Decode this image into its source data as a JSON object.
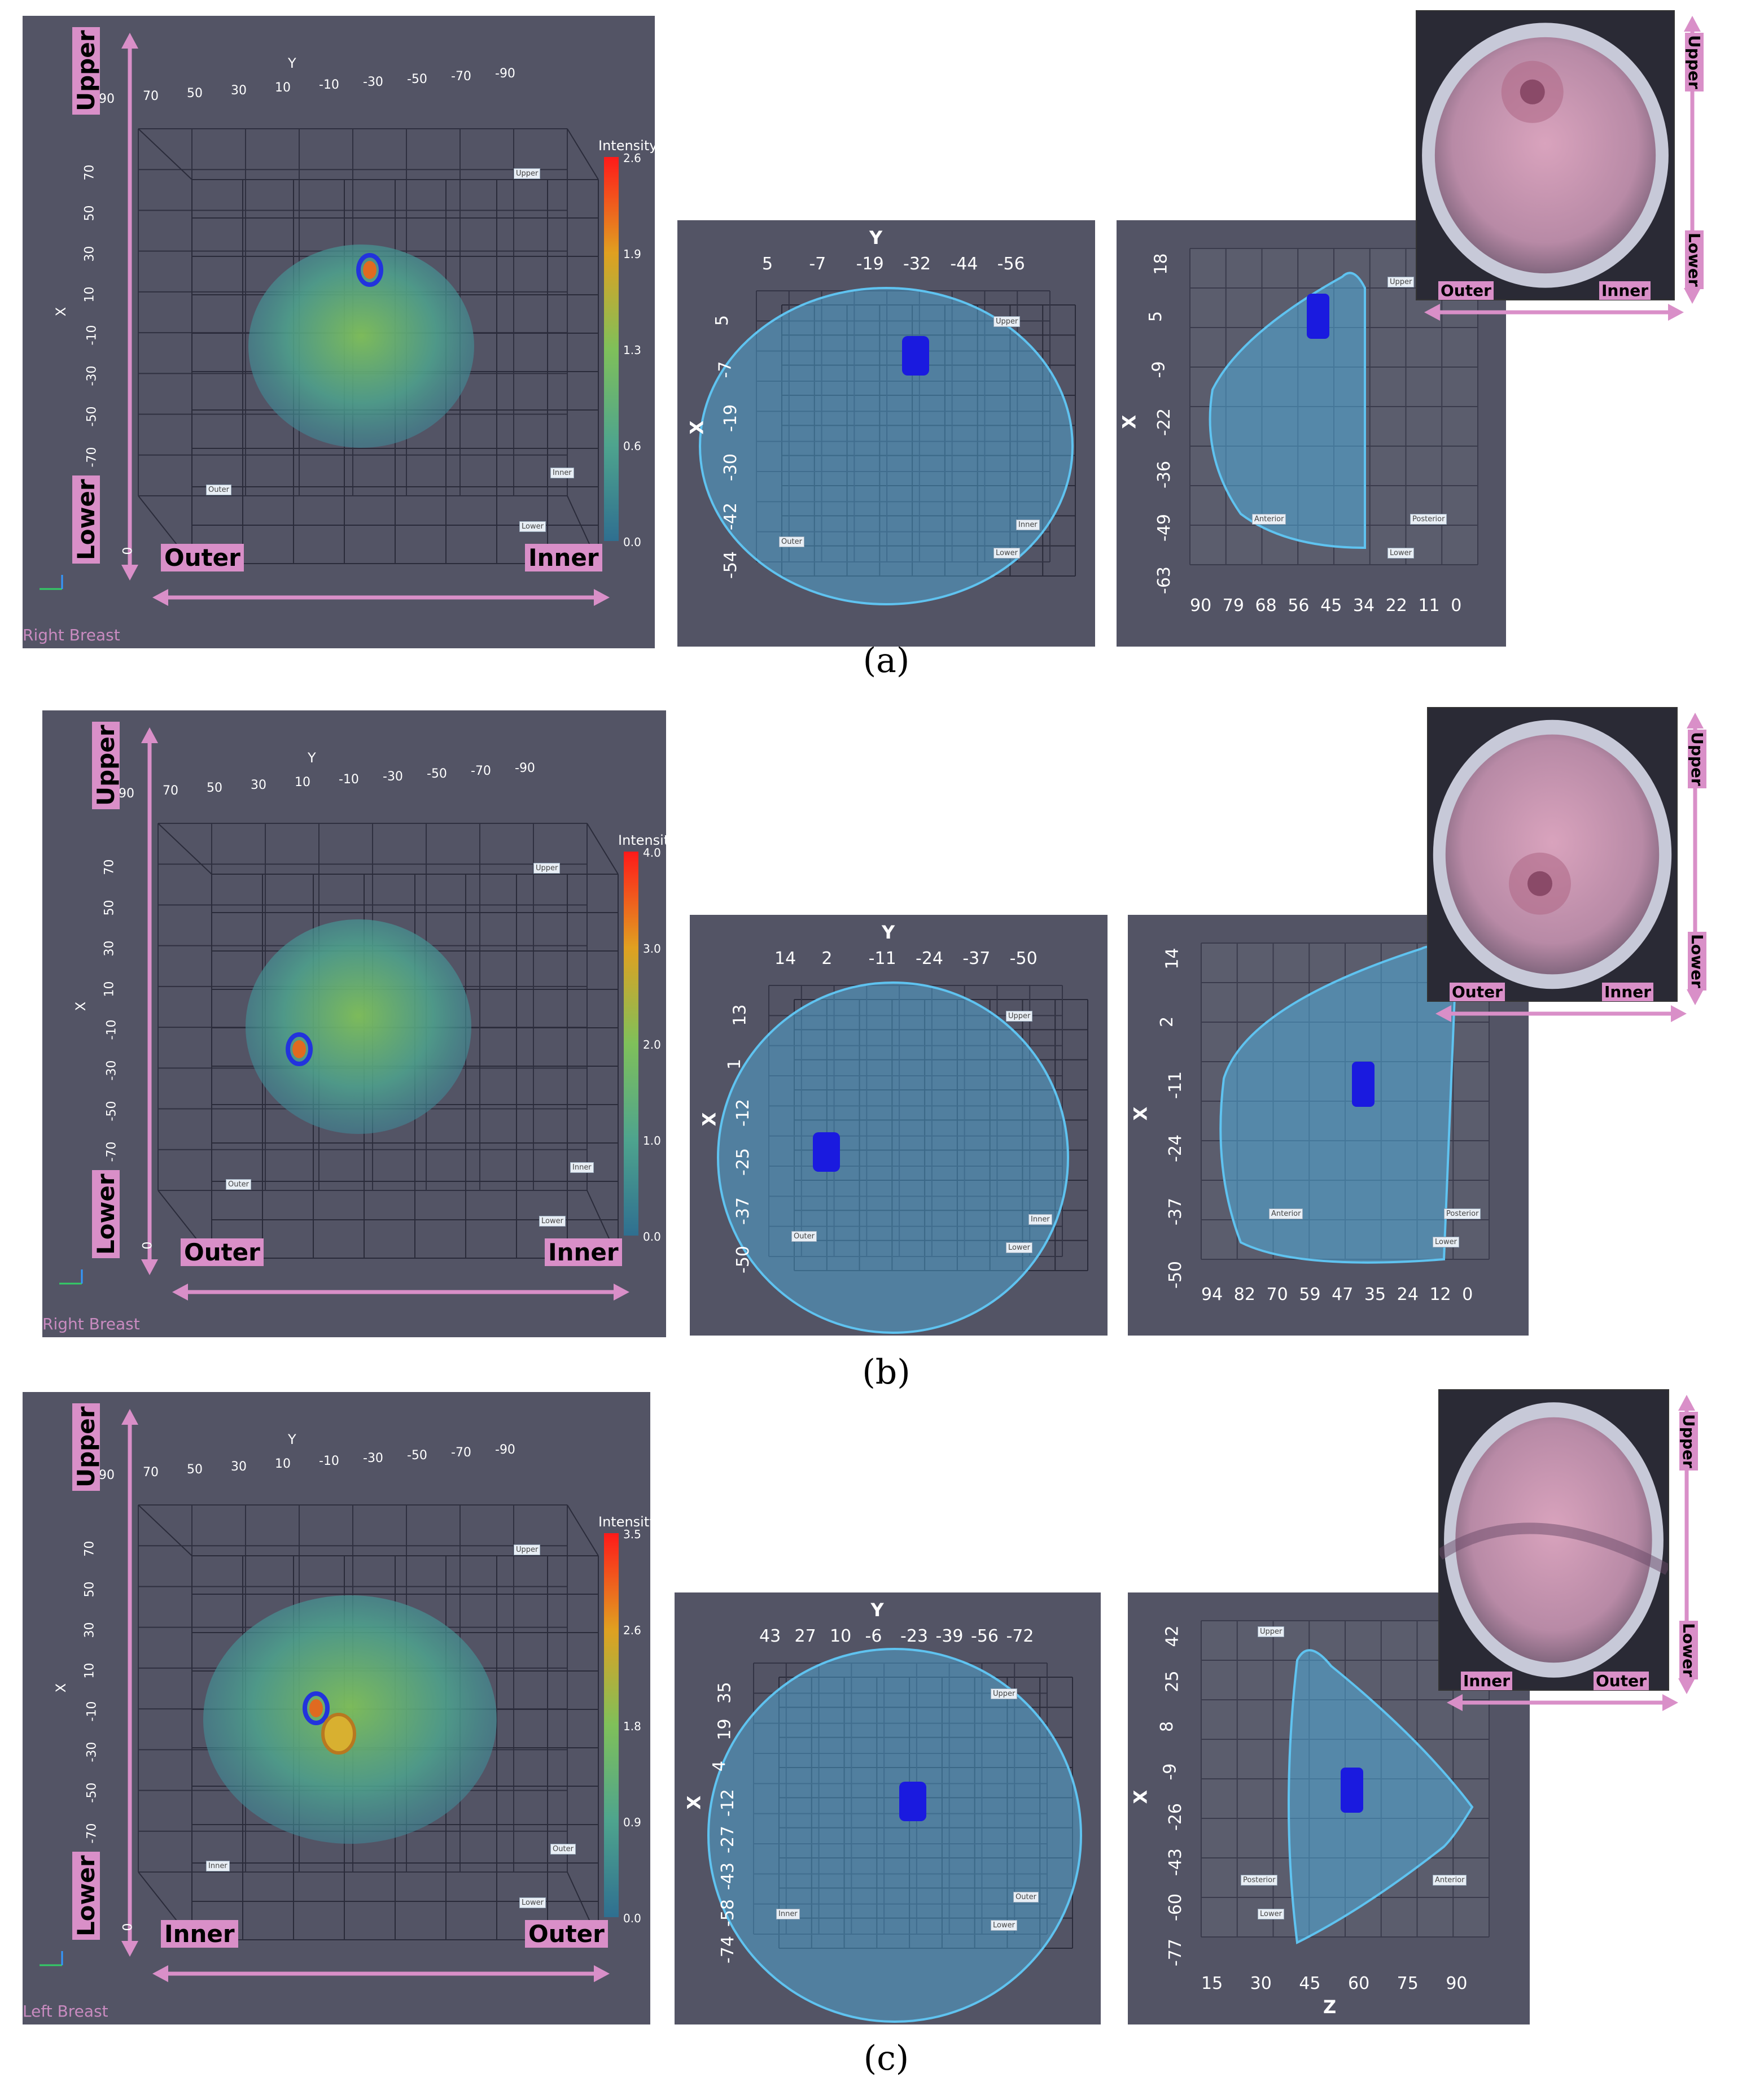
{
  "figure_labels": [
    "(a)",
    "(b)",
    "(c)"
  ],
  "rows": [
    {
      "id": "a",
      "main": {
        "y_axis_label": "Y",
        "x_axis_label": "X",
        "y_ticks": [
          "90",
          "70",
          "50",
          "30",
          "10",
          "-10",
          "-30",
          "-50",
          "-70",
          "-90"
        ],
        "x_ticks": [
          "70",
          "50",
          "30",
          "10",
          "-10",
          "-30",
          "-50",
          "-70"
        ],
        "x_zero": "0",
        "colorbar_title": "Intensity",
        "colorbar_ticks": [
          "2.6",
          "1.9",
          "1.3",
          "0.6",
          "0.0"
        ],
        "tags": [
          "Upper",
          "Outer",
          "Inner",
          "Lower"
        ],
        "dir_upper": "Upper",
        "dir_lower": "Lower",
        "dir_left": "Outer",
        "dir_right": "Inner",
        "side": "Right Breast"
      },
      "mid": {
        "y_axis_label": "Y",
        "x_axis_label": "X",
        "y_ticks": [
          "5",
          "-7",
          "-19",
          "-32",
          "-44",
          "-56"
        ],
        "x_ticks": [
          "5",
          "-7",
          "-19",
          "-30",
          "-42",
          "-54"
        ],
        "tags": [
          "Upper",
          "Outer",
          "Inner",
          "Lower"
        ]
      },
      "side_view": {
        "x_axis_label": "X",
        "x_ticks": [
          "18",
          "5",
          "-9",
          "-22",
          "-36",
          "-49",
          "-63"
        ],
        "z_ticks": [
          "90",
          "79",
          "68",
          "56",
          "45",
          "34",
          "22",
          "11",
          "0"
        ],
        "tags": [
          "Upper",
          "Anterior",
          "Posterior",
          "Lower"
        ]
      },
      "photo": {
        "dir_upper": "Upper",
        "dir_lower": "Lower",
        "dir_left": "Outer",
        "dir_right": "Inner"
      }
    },
    {
      "id": "b",
      "main": {
        "y_axis_label": "Y",
        "x_axis_label": "X",
        "y_ticks": [
          "90",
          "70",
          "50",
          "30",
          "10",
          "-10",
          "-30",
          "-50",
          "-70",
          "-90"
        ],
        "x_ticks": [
          "70",
          "50",
          "30",
          "10",
          "-10",
          "-30",
          "-50",
          "-70"
        ],
        "x_zero": "0",
        "colorbar_title": "Intensity",
        "colorbar_ticks": [
          "4.0",
          "3.0",
          "2.0",
          "1.0",
          "0.0"
        ],
        "tags": [
          "Upper",
          "Outer",
          "Inner",
          "Lower"
        ],
        "dir_upper": "Upper",
        "dir_lower": "Lower",
        "dir_left": "Outer",
        "dir_right": "Inner",
        "side": "Right Breast"
      },
      "mid": {
        "y_axis_label": "Y",
        "x_axis_label": "X",
        "y_ticks": [
          "14",
          "2",
          "-11",
          "-24",
          "-37",
          "-50"
        ],
        "x_ticks": [
          "13",
          "1",
          "-12",
          "-25",
          "-37",
          "-50"
        ],
        "tags": [
          "Upper",
          "Outer",
          "Inner",
          "Lower"
        ]
      },
      "side_view": {
        "x_axis_label": "X",
        "x_ticks": [
          "14",
          "2",
          "-11",
          "-24",
          "-37",
          "-50"
        ],
        "z_ticks": [
          "94",
          "82",
          "70",
          "59",
          "47",
          "35",
          "24",
          "12",
          "0"
        ],
        "tags": [
          "Anterior",
          "Posterior",
          "Lower"
        ]
      },
      "photo": {
        "dir_upper": "Upper",
        "dir_lower": "Lower",
        "dir_left": "Outer",
        "dir_right": "Inner"
      }
    },
    {
      "id": "c",
      "main": {
        "y_axis_label": "Y",
        "x_axis_label": "X",
        "y_ticks": [
          "90",
          "70",
          "50",
          "30",
          "10",
          "-10",
          "-30",
          "-50",
          "-70",
          "-90"
        ],
        "x_ticks": [
          "70",
          "50",
          "30",
          "10",
          "-10",
          "-30",
          "-50",
          "-70"
        ],
        "x_zero": "0",
        "colorbar_title": "Intensity",
        "colorbar_ticks": [
          "3.5",
          "2.6",
          "1.8",
          "0.9",
          "0.0"
        ],
        "tags": [
          "Upper",
          "Inner",
          "Outer",
          "Lower"
        ],
        "dir_upper": "Upper",
        "dir_lower": "Lower",
        "dir_left": "Inner",
        "dir_right": "Outer",
        "side": "Left Breast"
      },
      "mid": {
        "y_axis_label": "Y",
        "x_axis_label": "X",
        "y_ticks": [
          "43",
          "27",
          "10",
          "-6",
          "-23",
          "-39",
          "-56",
          "-72"
        ],
        "x_ticks": [
          "35",
          "19",
          "4",
          "-12",
          "-27",
          "-43",
          "-58",
          "-74"
        ],
        "tags": [
          "Upper",
          "Inner",
          "Outer",
          "Lower"
        ]
      },
      "side_view": {
        "x_axis_label": "X",
        "z_axis_label": "Z",
        "x_ticks": [
          "42",
          "25",
          "8",
          "-9",
          "-26",
          "-43",
          "-60",
          "-77"
        ],
        "z_ticks": [
          "15",
          "30",
          "45",
          "60",
          "75",
          "90"
        ],
        "tags": [
          "Upper",
          "Posterior",
          "Lower",
          "Anterior"
        ]
      },
      "photo": {
        "dir_upper": "Upper",
        "dir_lower": "Lower",
        "dir_left": "Inner",
        "dir_right": "Outer"
      }
    }
  ],
  "colors": {
    "panel_bg": "#535465",
    "arrow": "#d98fc8",
    "tumor": "#1a1adf",
    "mesh": "#4fb3e6"
  }
}
